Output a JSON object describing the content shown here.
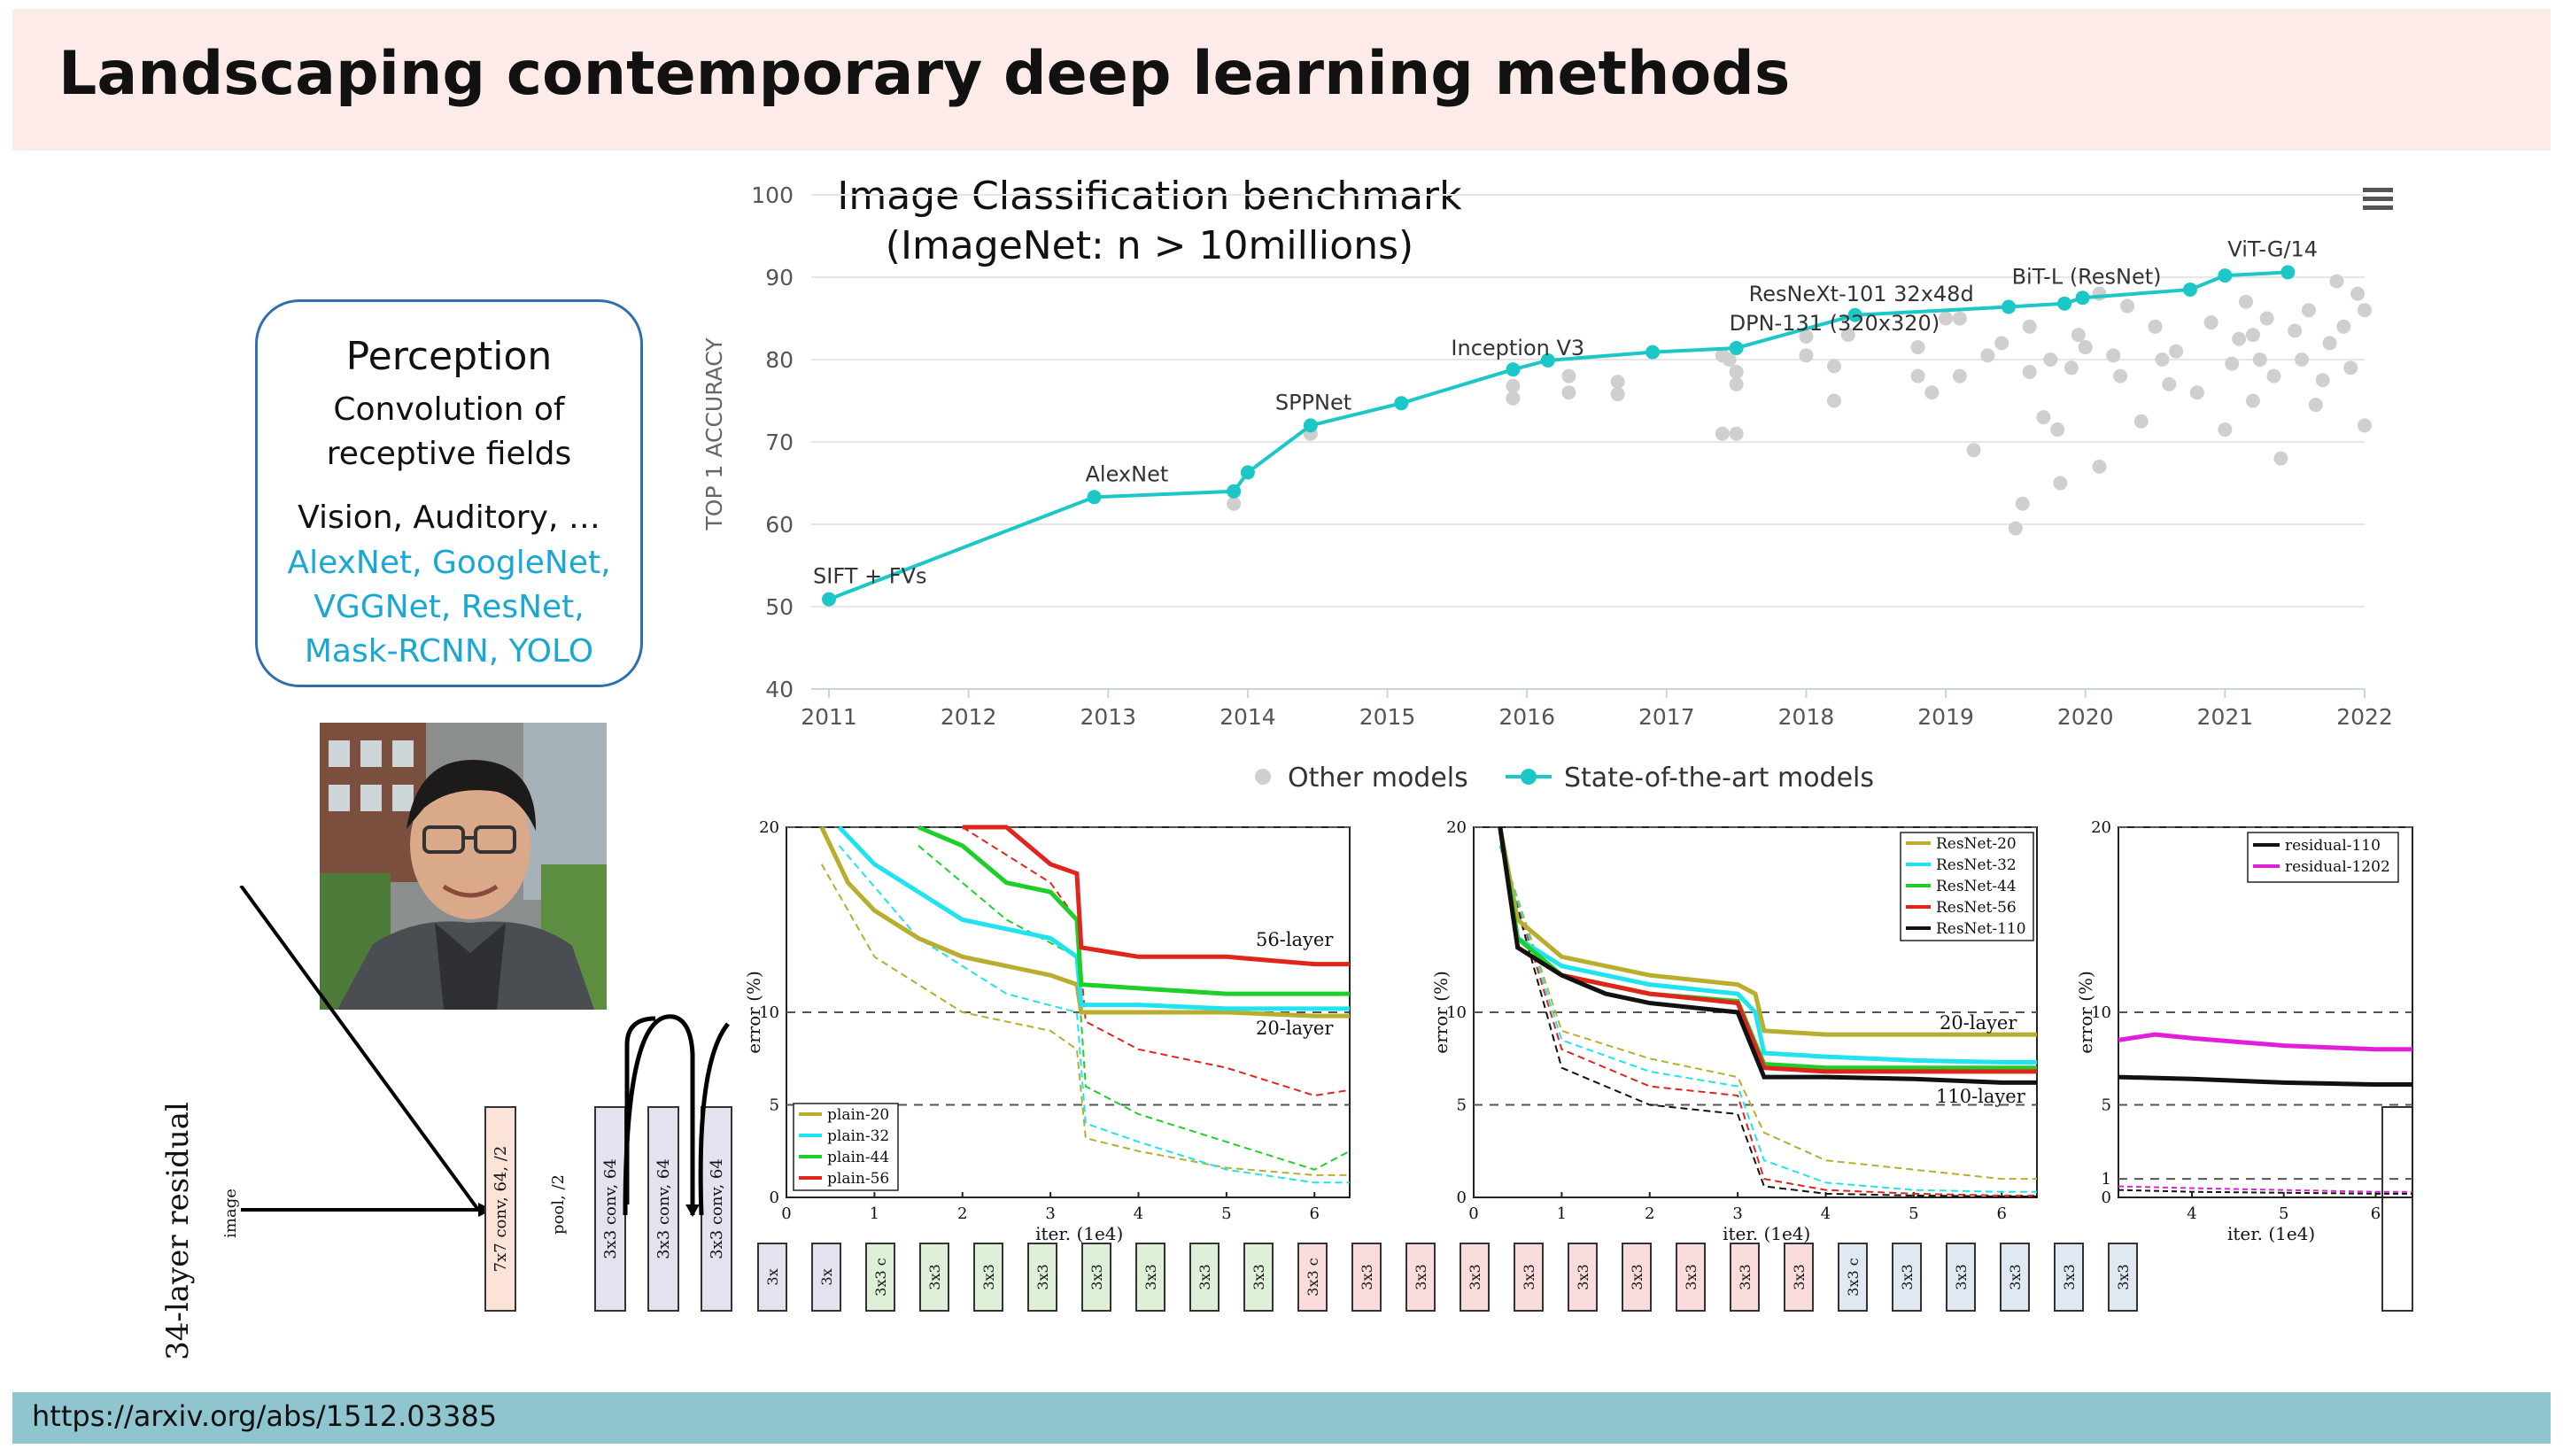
{
  "slide": {
    "title": "Landscaping contemporary deep learning methods",
    "footer_link": "https://arxiv.org/abs/1512.03385"
  },
  "perception_box": {
    "title": "Perception",
    "subtitle_line1": "Convolution of",
    "subtitle_line2": "receptive fields",
    "modalities": "Vision, Auditory, …",
    "nets_line1": "AlexNet, GoogleNet,",
    "nets_line2": "VGGNet, ResNet,",
    "nets_line3": "Mask-RCNN, YOLO",
    "accent_color": "#1aa7d4"
  },
  "benchmark_chart": {
    "title_line1": "Image Classification benchmark",
    "title_line2": "(ImageNet: n > 10millions)",
    "menu_icon": "hamburger-menu-icon"
  },
  "resnet_plots": {
    "plain": {
      "legend": [
        "plain-20",
        "plain-32",
        "plain-44",
        "plain-56"
      ],
      "ylabel": "error (%)",
      "xlabel": "iter. (1e4)",
      "annotations": [
        "56-layer",
        "20-layer"
      ],
      "yticks": [
        "0",
        "5",
        "10",
        "20"
      ],
      "xticks": [
        "0",
        "1",
        "2",
        "3",
        "4",
        "5",
        "6"
      ]
    },
    "resnet": {
      "legend": [
        "ResNet-20",
        "ResNet-32",
        "ResNet-44",
        "ResNet-56",
        "ResNet-110"
      ],
      "ylabel": "error (%)",
      "xlabel": "iter. (1e4)",
      "annotations": [
        "20-layer",
        "110-layer"
      ],
      "yticks": [
        "0",
        "5",
        "10",
        "20"
      ],
      "xticks": [
        "0",
        "1",
        "2",
        "3",
        "4",
        "5",
        "6"
      ]
    },
    "deep": {
      "legend": [
        "residual-110",
        "residual-1202"
      ],
      "ylabel": "error (%)",
      "xlabel": "iter. (1e4)",
      "yticks": [
        "0",
        "1",
        "5",
        "10",
        "20"
      ],
      "xticks": [
        "4",
        "5",
        "6"
      ]
    },
    "colors": {
      "l20": "#b9ad2e",
      "l32": "#1fe3ee",
      "l44": "#1ecf2a",
      "l56": "#e0261c",
      "l110": "#111111",
      "l1202": "#e020d8"
    }
  },
  "architecture": {
    "side_label": "34-layer residual",
    "input_label": "image",
    "conv1": "7x7 conv, 64, /2",
    "pool": "pool, /2",
    "conv64": "3x3 conv, 64",
    "truncated": [
      "3x",
      "3x",
      "3x3 c",
      "3x3",
      "3x3",
      "3x3",
      "3x3",
      "3x3",
      "3x3",
      "3x3",
      "3x3 c",
      "3x3",
      "3x3",
      "3x3",
      "3x3",
      "3x3",
      "3x3",
      "3x3",
      "3x3",
      "3x3",
      "3x3 c",
      "3x3",
      "3x3",
      "3x3",
      "3x3",
      "3x3"
    ]
  },
  "chart_data": {
    "type": "scatter",
    "title": "",
    "ylabel": "TOP 1 ACCURACY",
    "xlabel": "",
    "xlim": [
      2011,
      2022
    ],
    "ylim": [
      40,
      100
    ],
    "x_ticks": [
      "2011",
      "2012",
      "2013",
      "2014",
      "2015",
      "2016",
      "2017",
      "2018",
      "2019",
      "2020",
      "2021",
      "2022"
    ],
    "y_ticks": [
      "40",
      "50",
      "60",
      "70",
      "80",
      "90",
      "100"
    ],
    "legend_position": "bottom",
    "grid": true,
    "series": [
      {
        "name": "State-of-the-art models",
        "color": "#1cc7c7",
        "mode": "line+markers",
        "x": [
          2011.0,
          2012.9,
          2013.9,
          2014.0,
          2014.45,
          2015.1,
          2015.9,
          2016.15,
          2016.9,
          2017.5,
          2018.35,
          2019.45,
          2019.85,
          2019.98,
          2020.75,
          2021.0,
          2021.45
        ],
        "y": [
          50.9,
          63.3,
          64.0,
          66.3,
          72.0,
          74.7,
          78.8,
          79.9,
          80.9,
          81.4,
          85.4,
          86.4,
          86.8,
          87.5,
          88.5,
          90.2,
          90.6
        ]
      },
      {
        "name": "Other models",
        "color": "#cfcfcf",
        "mode": "markers",
        "x": [
          2013.9,
          2014.45,
          2015.9,
          2015.9,
          2016.3,
          2016.3,
          2016.65,
          2016.65,
          2017.4,
          2017.4,
          2017.5,
          2017.5,
          2017.5,
          2017.45,
          2018.0,
          2018.0,
          2018.2,
          2018.2,
          2018.3,
          2018.8,
          2018.9,
          2019.1,
          2019.1,
          2019.2,
          2019.3,
          2019.4,
          2019.5,
          2019.55,
          2019.6,
          2019.7,
          2019.75,
          2019.8,
          2019.82,
          2019.9,
          2019.95,
          2020.0,
          2020.1,
          2020.2,
          2020.25,
          2020.3,
          2020.4,
          2020.5,
          2020.55,
          2020.6,
          2020.8,
          2020.9,
          2021.0,
          2021.05,
          2021.1,
          2021.15,
          2021.2,
          2021.25,
          2021.3,
          2021.35,
          2021.4,
          2021.5,
          2021.55,
          2021.6,
          2021.7,
          2021.75,
          2021.85,
          2021.9,
          2021.95,
          2022.0,
          2022.0,
          2021.65,
          2021.2,
          2020.1,
          2019.0,
          2019.6,
          2018.8,
          2020.65,
          2021.8
        ],
        "y": [
          62.5,
          71.0,
          75.3,
          76.8,
          76.0,
          78.0,
          75.8,
          77.3,
          71.0,
          80.5,
          71.0,
          77.0,
          78.5,
          80.0,
          82.8,
          80.5,
          75.0,
          79.2,
          83.0,
          78.0,
          76.0,
          85.0,
          78.0,
          69.0,
          80.5,
          82.0,
          59.5,
          62.5,
          78.5,
          73.0,
          80.0,
          71.5,
          65.0,
          79.0,
          83.0,
          81.5,
          67.0,
          80.5,
          78.0,
          86.5,
          72.5,
          84.0,
          80.0,
          77.0,
          76.0,
          84.5,
          71.5,
          79.5,
          82.5,
          87.0,
          75.0,
          80.0,
          85.0,
          78.0,
          68.0,
          83.5,
          80.0,
          86.0,
          77.5,
          82.0,
          84.0,
          79.0,
          88.0,
          86.0,
          72.0,
          74.5,
          83.0,
          88.0,
          85.0,
          84.0,
          81.5,
          81.0,
          89.5
        ]
      }
    ],
    "annotations": [
      {
        "text": "SIFT + FVs",
        "x": 2011.0,
        "y": 50.9
      },
      {
        "text": "AlexNet",
        "x": 2012.9,
        "y": 63.3
      },
      {
        "text": "SPPNet",
        "x": 2014.45,
        "y": 72.0
      },
      {
        "text": "Inception V3",
        "x": 2015.9,
        "y": 78.8
      },
      {
        "text": "DPN-131 (320x320)",
        "x": 2017.5,
        "y": 81.4
      },
      {
        "text": "ResNeXt-101 32x48d",
        "x": 2018.35,
        "y": 85.4
      },
      {
        "text": "BiT-L (ResNet)",
        "x": 2019.98,
        "y": 87.5
      },
      {
        "text": "ViT-G/14",
        "x": 2021.45,
        "y": 90.6
      }
    ]
  }
}
